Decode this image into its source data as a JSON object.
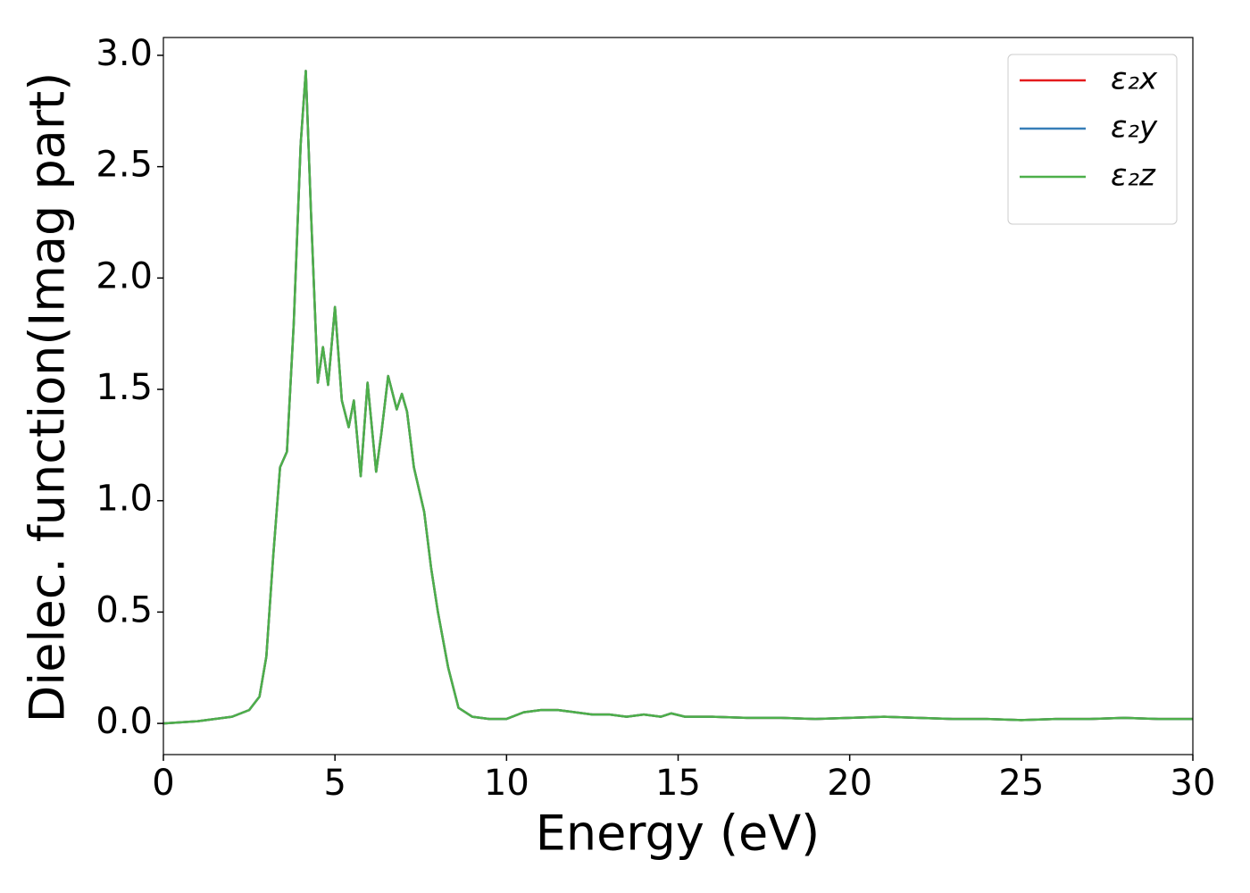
{
  "chart_data": {
    "type": "line",
    "xlabel": "Energy (eV)",
    "ylabel": "Dielec. function(Imag part)",
    "x": [
      0,
      1,
      2,
      2.5,
      2.8,
      3.0,
      3.2,
      3.4,
      3.6,
      3.8,
      4.0,
      4.15,
      4.3,
      4.5,
      4.65,
      4.8,
      5.0,
      5.2,
      5.4,
      5.55,
      5.75,
      5.95,
      6.2,
      6.35,
      6.55,
      6.8,
      6.95,
      7.1,
      7.3,
      7.6,
      7.8,
      8.0,
      8.3,
      8.6,
      9,
      9.5,
      10,
      10.5,
      11,
      11.5,
      12,
      12.5,
      13,
      13.5,
      14,
      14.5,
      14.8,
      15.2,
      16,
      17,
      18,
      19,
      20,
      21,
      22,
      23,
      24,
      25,
      26,
      27,
      28,
      29,
      30
    ],
    "series": [
      {
        "name": "ε₂x",
        "color": "#e41a1c",
        "values": [
          0.0,
          0.01,
          0.03,
          0.06,
          0.12,
          0.3,
          0.75,
          1.15,
          1.22,
          1.8,
          2.6,
          2.93,
          2.3,
          1.53,
          1.69,
          1.52,
          1.87,
          1.45,
          1.33,
          1.45,
          1.11,
          1.53,
          1.13,
          1.3,
          1.56,
          1.41,
          1.48,
          1.4,
          1.15,
          0.95,
          0.7,
          0.5,
          0.25,
          0.07,
          0.03,
          0.02,
          0.02,
          0.05,
          0.06,
          0.06,
          0.05,
          0.04,
          0.04,
          0.03,
          0.04,
          0.03,
          0.045,
          0.03,
          0.03,
          0.025,
          0.025,
          0.02,
          0.025,
          0.03,
          0.025,
          0.02,
          0.02,
          0.015,
          0.02,
          0.02,
          0.025,
          0.02,
          0.02
        ]
      },
      {
        "name": "ε₂y",
        "color": "#377eb8",
        "values": [
          0.0,
          0.01,
          0.03,
          0.06,
          0.12,
          0.3,
          0.75,
          1.15,
          1.22,
          1.8,
          2.6,
          2.93,
          2.3,
          1.53,
          1.69,
          1.52,
          1.87,
          1.45,
          1.33,
          1.45,
          1.11,
          1.53,
          1.13,
          1.3,
          1.56,
          1.41,
          1.48,
          1.4,
          1.15,
          0.95,
          0.7,
          0.5,
          0.25,
          0.07,
          0.03,
          0.02,
          0.02,
          0.05,
          0.06,
          0.06,
          0.05,
          0.04,
          0.04,
          0.03,
          0.04,
          0.03,
          0.045,
          0.03,
          0.03,
          0.025,
          0.025,
          0.02,
          0.025,
          0.03,
          0.025,
          0.02,
          0.02,
          0.015,
          0.02,
          0.02,
          0.025,
          0.02,
          0.02
        ]
      },
      {
        "name": "ε₂z",
        "color": "#4daf4a",
        "values": [
          0.0,
          0.01,
          0.03,
          0.06,
          0.12,
          0.3,
          0.75,
          1.15,
          1.22,
          1.8,
          2.6,
          2.93,
          2.3,
          1.53,
          1.69,
          1.52,
          1.87,
          1.45,
          1.33,
          1.45,
          1.11,
          1.53,
          1.13,
          1.3,
          1.56,
          1.41,
          1.48,
          1.4,
          1.15,
          0.95,
          0.7,
          0.5,
          0.25,
          0.07,
          0.03,
          0.02,
          0.02,
          0.05,
          0.06,
          0.06,
          0.05,
          0.04,
          0.04,
          0.03,
          0.04,
          0.03,
          0.045,
          0.03,
          0.03,
          0.025,
          0.025,
          0.02,
          0.025,
          0.03,
          0.025,
          0.02,
          0.02,
          0.015,
          0.02,
          0.02,
          0.025,
          0.02,
          0.02
        ]
      }
    ],
    "xlim": [
      0,
      30
    ],
    "xticks": [
      0,
      5,
      10,
      15,
      20,
      25,
      30
    ],
    "ylim": [
      -0.14,
      3.08
    ],
    "yticks": [
      {
        "value": 0,
        "label": "0.0"
      },
      0.5,
      {
        "value": 1,
        "label": "1.0"
      },
      1.5,
      {
        "value": 2,
        "label": "2.0"
      },
      2.5,
      {
        "value": 3,
        "label": "3.0"
      }
    ],
    "legend": "upper right",
    "grid": false
  }
}
